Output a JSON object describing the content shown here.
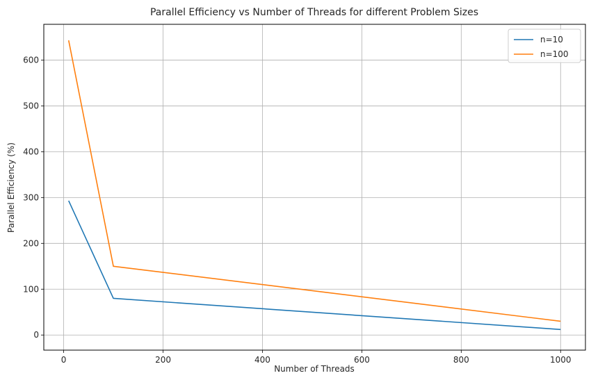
{
  "chart_data": {
    "type": "line",
    "title": "Parallel Efficiency vs Number of Threads for different Problem Sizes",
    "xlabel": "Number of Threads",
    "ylabel": "Parallel Efficiency (%)",
    "xlim": [
      -40,
      1050
    ],
    "ylim": [
      -33,
      678
    ],
    "xticks": [
      0,
      200,
      400,
      600,
      800,
      1000
    ],
    "yticks": [
      0,
      100,
      200,
      300,
      400,
      500,
      600
    ],
    "grid": true,
    "legend_position": "top-right",
    "series": [
      {
        "name": "n=10",
        "color": "#1f77b4",
        "x": [
          10,
          100,
          1000
        ],
        "y": [
          293,
          80,
          12
        ]
      },
      {
        "name": "n=100",
        "color": "#ff7f0e",
        "x": [
          10,
          100,
          1000
        ],
        "y": [
          643,
          150,
          30
        ]
      }
    ]
  }
}
